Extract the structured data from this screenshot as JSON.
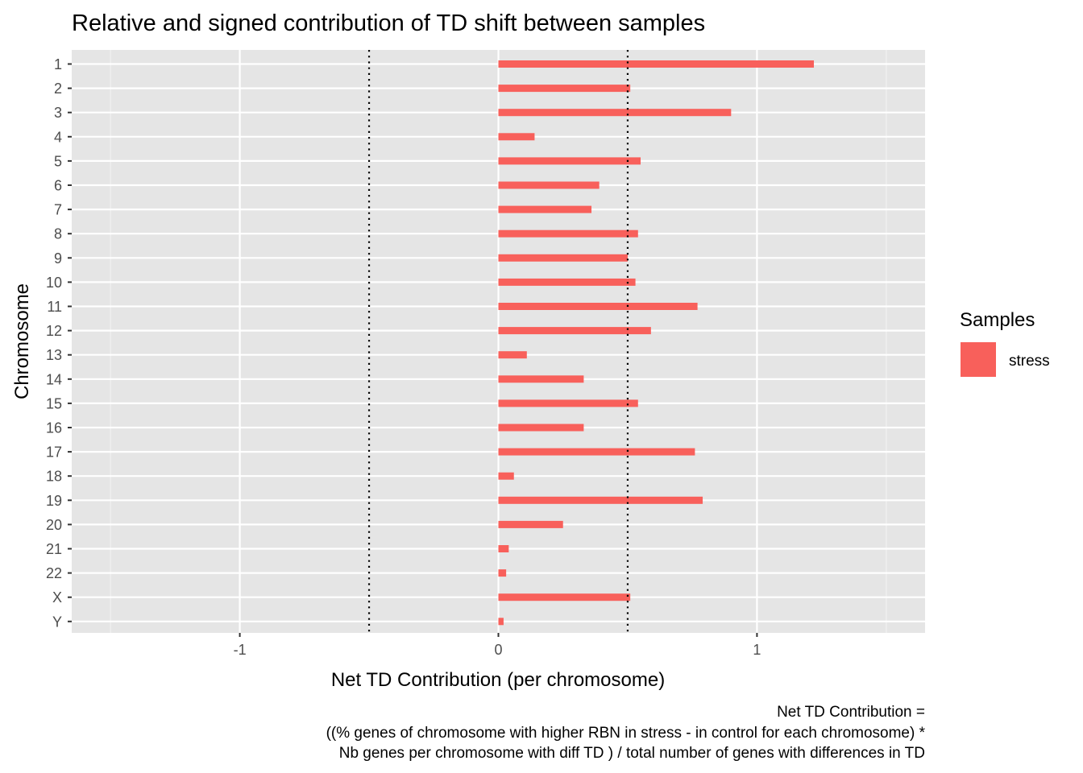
{
  "chart_data": {
    "type": "bar",
    "orientation": "horizontal",
    "title": "Relative and signed contribution of TD shift between samples",
    "xlabel": "Net TD Contribution (per chromosome)",
    "ylabel": "Chromosome",
    "xlim": [
      -1.65,
      1.65
    ],
    "x_ticks": [
      -1,
      0,
      1
    ],
    "x_tick_labels": [
      "-1",
      "0",
      "1"
    ],
    "reference_lines": [
      -0.5,
      0.5
    ],
    "reference_line_style": "dotted",
    "background": "#e5e5e5",
    "grid": true,
    "legend": {
      "title": "Samples",
      "position": "right",
      "entries": [
        {
          "label": "stress",
          "color": "#f8605b"
        }
      ]
    },
    "categories": [
      "1",
      "2",
      "3",
      "4",
      "5",
      "6",
      "7",
      "8",
      "9",
      "10",
      "11",
      "12",
      "13",
      "14",
      "15",
      "16",
      "17",
      "18",
      "19",
      "20",
      "21",
      "22",
      "X",
      "Y"
    ],
    "series": [
      {
        "name": "stress",
        "color": "#f8605b",
        "values": [
          1.22,
          0.51,
          0.9,
          0.14,
          0.55,
          0.39,
          0.36,
          0.54,
          0.5,
          0.53,
          0.77,
          0.59,
          0.11,
          0.33,
          0.54,
          0.33,
          0.76,
          0.06,
          0.79,
          0.25,
          0.04,
          0.03,
          0.51,
          0.02
        ]
      }
    ],
    "caption": [
      "Net TD Contribution =",
      "((% genes of chromosome with higher RBN in stress - in control for each chromosome) *",
      "Nb genes per chromosome with diff TD ) / total number of genes with differences in TD"
    ]
  }
}
